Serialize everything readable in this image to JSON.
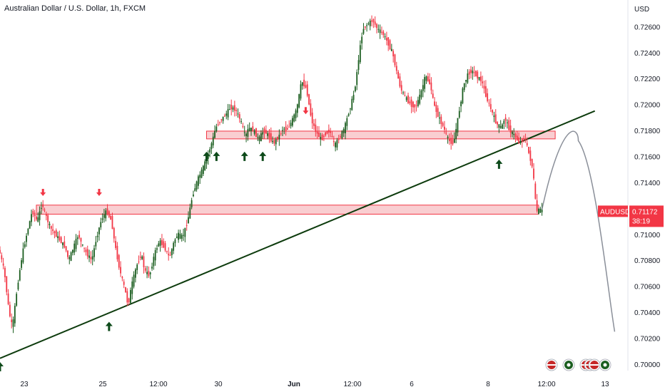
{
  "title": "Australian Dollar / U.S. Dollar, 1h, FXCM",
  "currency": "USD",
  "price_badge": {
    "symbol": "AUDUSD",
    "price": "0.71172",
    "countdown": "38:19",
    "color": "#f23645"
  },
  "colors": {
    "up": "#1b5e20",
    "down": "#f23645",
    "trendline": "#0d3b0d",
    "zone_fill": "#f7b9bd",
    "zone_stroke": "#f23645",
    "projection": "#8a8f99",
    "arrow_up": "#0d4a1a",
    "arrow_down": "#f23645"
  },
  "icons": [
    "us-flag-icon",
    "au-flag-icon",
    "us-flag-icon",
    "us-flag-icon",
    "us-flag-icon",
    "au-flag-icon"
  ],
  "chart_data": {
    "type": "candlestick",
    "title": "Australian Dollar / U.S. Dollar, 1h, FXCM",
    "ylim": [
      0.6995,
      0.7275
    ],
    "y_ticks": [
      "0.72600",
      "0.72400",
      "0.72200",
      "0.72000",
      "0.71800",
      "0.71600",
      "0.71400",
      "0.71200",
      "0.71000",
      "0.70800",
      "0.70600",
      "0.70400",
      "0.70200",
      "0.70000"
    ],
    "x_ticks": [
      "23",
      "25",
      "12:00",
      "30",
      "Jun",
      "12:00",
      "6",
      "8",
      "12:00",
      "13"
    ],
    "path": [
      [
        0,
        0.7088
      ],
      [
        3,
        0.7072
      ],
      [
        6,
        0.704
      ],
      [
        8,
        0.7028
      ],
      [
        11,
        0.706
      ],
      [
        14,
        0.7085
      ],
      [
        17,
        0.7102
      ],
      [
        20,
        0.7118
      ],
      [
        23,
        0.711
      ],
      [
        26,
        0.7124
      ],
      [
        28,
        0.7115
      ],
      [
        31,
        0.7105
      ],
      [
        34,
        0.71
      ],
      [
        37,
        0.7095
      ],
      [
        40,
        0.709
      ],
      [
        42,
        0.708
      ],
      [
        45,
        0.709
      ],
      [
        48,
        0.71
      ],
      [
        50,
        0.7092
      ],
      [
        53,
        0.7085
      ],
      [
        56,
        0.708
      ],
      [
        59,
        0.7098
      ],
      [
        62,
        0.7112
      ],
      [
        65,
        0.7118
      ],
      [
        68,
        0.711
      ],
      [
        70,
        0.7092
      ],
      [
        73,
        0.7072
      ],
      [
        76,
        0.7058
      ],
      [
        78,
        0.7045
      ],
      [
        80,
        0.706
      ],
      [
        83,
        0.7075
      ],
      [
        86,
        0.7085
      ],
      [
        88,
        0.7072
      ],
      [
        91,
        0.7068
      ],
      [
        94,
        0.7085
      ],
      [
        97,
        0.7095
      ],
      [
        100,
        0.709
      ],
      [
        103,
        0.7082
      ],
      [
        106,
        0.7095
      ],
      [
        108,
        0.71
      ],
      [
        111,
        0.7098
      ],
      [
        114,
        0.711
      ],
      [
        117,
        0.713
      ],
      [
        120,
        0.7142
      ],
      [
        123,
        0.715
      ],
      [
        126,
        0.716
      ],
      [
        129,
        0.7172
      ],
      [
        131,
        0.7182
      ],
      [
        134,
        0.7188
      ],
      [
        137,
        0.7192
      ],
      [
        140,
        0.7198
      ],
      [
        143,
        0.7196
      ],
      [
        146,
        0.7188
      ],
      [
        149,
        0.7175
      ],
      [
        151,
        0.7182
      ],
      [
        154,
        0.718
      ],
      [
        157,
        0.7173
      ],
      [
        160,
        0.718
      ],
      [
        163,
        0.7176
      ],
      [
        166,
        0.717
      ],
      [
        169,
        0.7175
      ],
      [
        172,
        0.7182
      ],
      [
        174,
        0.718
      ],
      [
        177,
        0.7187
      ],
      [
        180,
        0.7196
      ],
      [
        183,
        0.7218
      ],
      [
        186,
        0.7212
      ],
      [
        189,
        0.7188
      ],
      [
        192,
        0.7178
      ],
      [
        195,
        0.7173
      ],
      [
        197,
        0.7177
      ],
      [
        200,
        0.718
      ],
      [
        203,
        0.7168
      ],
      [
        206,
        0.7175
      ],
      [
        209,
        0.7182
      ],
      [
        212,
        0.7196
      ],
      [
        215,
        0.721
      ],
      [
        218,
        0.724
      ],
      [
        220,
        0.7258
      ],
      [
        223,
        0.7262
      ],
      [
        226,
        0.7265
      ],
      [
        229,
        0.7258
      ],
      [
        232,
        0.7255
      ],
      [
        235,
        0.7248
      ],
      [
        238,
        0.724
      ],
      [
        240,
        0.7228
      ],
      [
        243,
        0.7212
      ],
      [
        246,
        0.7205
      ],
      [
        249,
        0.72
      ],
      [
        252,
        0.7198
      ],
      [
        255,
        0.7208
      ],
      [
        258,
        0.7222
      ],
      [
        261,
        0.7215
      ],
      [
        263,
        0.72
      ],
      [
        266,
        0.719
      ],
      [
        269,
        0.7182
      ],
      [
        272,
        0.7172
      ],
      [
        275,
        0.717
      ],
      [
        278,
        0.7192
      ],
      [
        281,
        0.7215
      ],
      [
        284,
        0.7224
      ],
      [
        286,
        0.7226
      ],
      [
        289,
        0.7222
      ],
      [
        292,
        0.7218
      ],
      [
        295,
        0.7205
      ],
      [
        298,
        0.7195
      ],
      [
        301,
        0.7185
      ],
      [
        304,
        0.7182
      ],
      [
        306,
        0.719
      ],
      [
        309,
        0.718
      ],
      [
        312,
        0.7176
      ],
      [
        315,
        0.717
      ],
      [
        318,
        0.7175
      ],
      [
        320,
        0.7165
      ],
      [
        323,
        0.715
      ],
      [
        325,
        0.7118
      ],
      [
        328,
        0.7119
      ]
    ],
    "trendline": [
      [
        0,
        0.70045
      ],
      [
        360,
        0.7195
      ]
    ],
    "zones": [
      {
        "x0": 22,
        "x1": 326,
        "y0": 0.71155,
        "y1": 0.71225
      },
      {
        "x0": 125,
        "x1": 336,
        "y0": 0.71735,
        "y1": 0.71795
      }
    ],
    "projection": [
      [
        328,
        0.7119
      ],
      [
        340,
        0.7178
      ],
      [
        350,
        0.7172
      ],
      [
        360,
        0.7125
      ],
      [
        372,
        0.7025
      ]
    ],
    "arrows_up": [
      [
        0,
        0.7006
      ],
      [
        66,
        0.7037
      ],
      [
        125,
        0.7168
      ],
      [
        131,
        0.7168
      ],
      [
        148,
        0.7168
      ],
      [
        159,
        0.7168
      ],
      [
        302,
        0.7162
      ]
    ],
    "arrows_down": [
      [
        26,
        0.7124
      ],
      [
        60,
        0.7124
      ],
      [
        185,
        0.7187
      ]
    ]
  }
}
